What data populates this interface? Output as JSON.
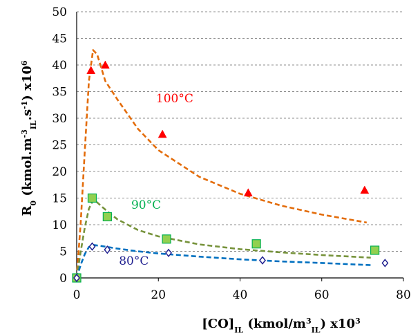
{
  "chart_data": {
    "type": "scatter",
    "title": "",
    "xlabel": {
      "text": "[CO]",
      "sub": "IL",
      "text2": " (kmol/m",
      "sup": "3",
      "sub2": "IL",
      "text3": ") x10",
      "sup2": "3"
    },
    "ylabel": {
      "text": "R",
      "sub": "0",
      "text2": " (kmol.m",
      "sup": "-3",
      "sub2": "IL",
      "text3": ".s",
      "sup2": "-1",
      "text4": ") x10",
      "sup3": "6"
    },
    "xlim": [
      0,
      80
    ],
    "ylim": [
      0,
      50
    ],
    "xticks": [
      0,
      20,
      40,
      60,
      80
    ],
    "yticks": [
      0,
      5,
      10,
      15,
      20,
      25,
      30,
      35,
      40,
      45,
      50
    ],
    "grid": "horizontal dashed",
    "series": [
      {
        "name": "100°C",
        "color": "#ff0000",
        "marker": "triangle",
        "fit_color": "#e36c0a",
        "points": [
          [
            0,
            0
          ],
          [
            3.5,
            39
          ],
          [
            7,
            40
          ],
          [
            21,
            27
          ],
          [
            42,
            16
          ],
          [
            70.5,
            16.5
          ]
        ],
        "fit": [
          [
            0,
            0
          ],
          [
            1,
            10.5
          ],
          [
            2,
            24
          ],
          [
            3,
            37
          ],
          [
            4,
            42.8
          ],
          [
            5,
            42
          ],
          [
            6,
            39.5
          ],
          [
            7,
            37
          ],
          [
            10,
            33.5
          ],
          [
            15,
            28
          ],
          [
            20,
            24
          ],
          [
            30,
            19
          ],
          [
            40,
            15.8
          ],
          [
            50,
            13.6
          ],
          [
            60,
            11.9
          ],
          [
            71,
            10.4
          ]
        ]
      },
      {
        "name": "90°C",
        "color": "#00b050",
        "marker": "square",
        "fit_color": "#77933c",
        "points": [
          [
            0,
            0
          ],
          [
            3.8,
            15
          ],
          [
            7.5,
            11.5
          ],
          [
            22,
            7.3
          ],
          [
            44,
            6.4
          ],
          [
            73,
            5.2
          ]
        ],
        "fit": [
          [
            0,
            0
          ],
          [
            1,
            5
          ],
          [
            2,
            9.5
          ],
          [
            3,
            13
          ],
          [
            4,
            14.6
          ],
          [
            5,
            14.2
          ],
          [
            6,
            13.5
          ],
          [
            8,
            12.2
          ],
          [
            10,
            11
          ],
          [
            15,
            9
          ],
          [
            20,
            7.8
          ],
          [
            30,
            6.3
          ],
          [
            40,
            5.4
          ],
          [
            50,
            4.8
          ],
          [
            60,
            4.3
          ],
          [
            72,
            3.8
          ]
        ]
      },
      {
        "name": "80°C",
        "color": "#1f1f8f",
        "marker": "diamond",
        "fit_color": "#0070c0",
        "points": [
          [
            0,
            0
          ],
          [
            3.8,
            5.9
          ],
          [
            7.5,
            5.3
          ],
          [
            22.5,
            4.7
          ],
          [
            45.5,
            3.3
          ],
          [
            75.5,
            2.8
          ]
        ],
        "fit": [
          [
            0,
            0
          ],
          [
            1,
            2.5
          ],
          [
            2,
            4.5
          ],
          [
            3,
            5.8
          ],
          [
            4,
            6.2
          ],
          [
            6,
            6
          ],
          [
            10,
            5.5
          ],
          [
            15,
            5
          ],
          [
            20,
            4.6
          ],
          [
            30,
            4
          ],
          [
            40,
            3.5
          ],
          [
            50,
            3.1
          ],
          [
            60,
            2.8
          ],
          [
            72,
            2.4
          ]
        ]
      }
    ]
  }
}
